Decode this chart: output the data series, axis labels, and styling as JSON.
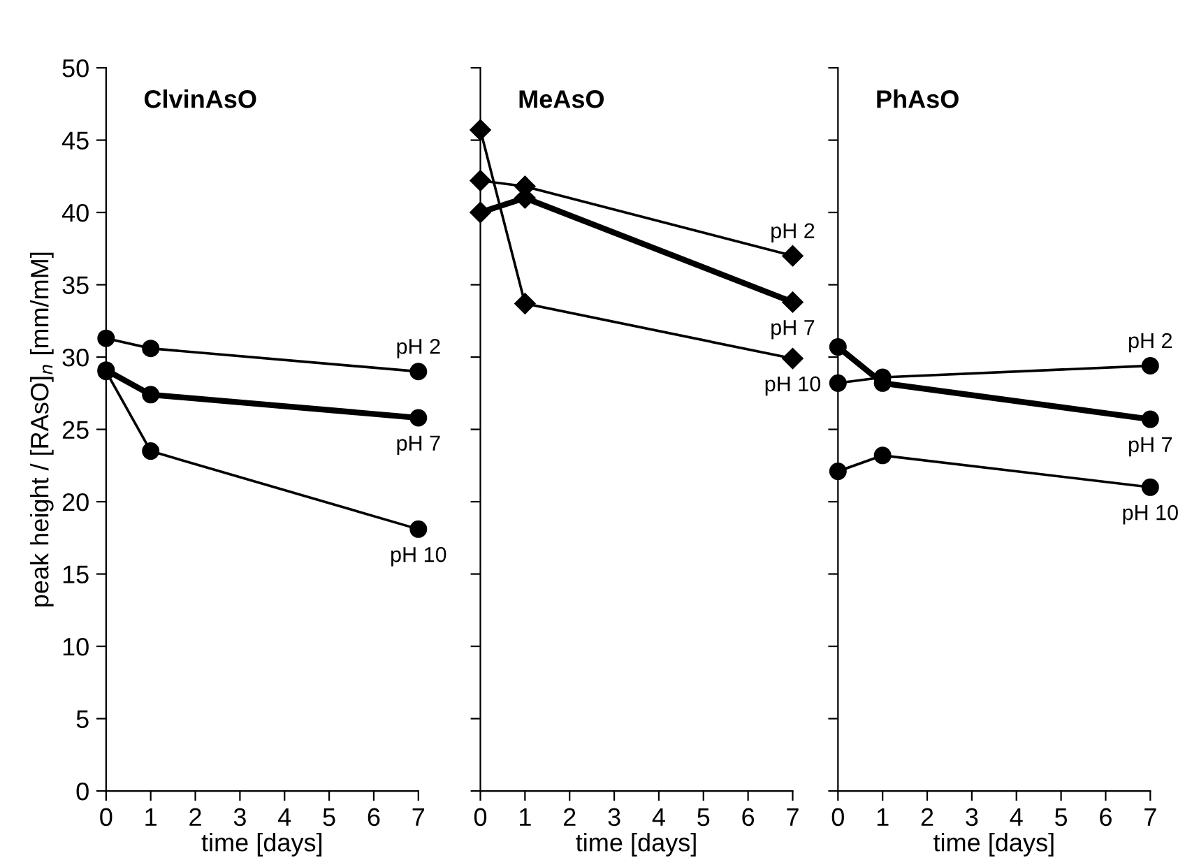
{
  "chart_data": [
    {
      "type": "line",
      "title": "ClvinAsO",
      "xlabel": "time [days]",
      "ylabel": "peak height / [RAsO]$_{n}$ [mm/mM]",
      "x": [
        0,
        1,
        7
      ],
      "xlim": [
        0,
        7
      ],
      "xticks": [
        0,
        1,
        2,
        3,
        4,
        5,
        6,
        7
      ],
      "ylim": [
        0,
        50
      ],
      "yticks": [
        0,
        5,
        10,
        15,
        20,
        25,
        30,
        35,
        40,
        45,
        50
      ],
      "marker": "circle",
      "grid": false,
      "legend": "right",
      "series": [
        {
          "name": "pH 2",
          "color": "#000000",
          "values": [
            31.3,
            30.6,
            29.0
          ]
        },
        {
          "name": "pH 7",
          "color": "#000000",
          "values": [
            29.1,
            27.4,
            25.8
          ]
        },
        {
          "name": "pH 10",
          "color": "#000000",
          "values": [
            29.0,
            23.5,
            18.1
          ]
        }
      ]
    },
    {
      "type": "line",
      "title": "MeAsO",
      "xlabel": "time [days]",
      "x": [
        0,
        1,
        7
      ],
      "xlim": [
        0,
        7
      ],
      "xticks": [
        0,
        1,
        2,
        3,
        4,
        5,
        6,
        7
      ],
      "ylim": [
        0,
        50
      ],
      "yticks": [
        0,
        5,
        10,
        15,
        20,
        25,
        30,
        35,
        40,
        45,
        50
      ],
      "tick_labels": "x",
      "marker": "diamond",
      "grid": false,
      "legend": "right",
      "series": [
        {
          "name": "pH 2",
          "color": "#000000",
          "values": [
            42.2,
            41.8,
            37.0
          ]
        },
        {
          "name": "pH 7",
          "color": "#000000",
          "values": [
            40.0,
            41.0,
            33.8
          ]
        },
        {
          "name": "pH 10",
          "color": "#000000",
          "values": [
            45.7,
            33.7,
            29.9
          ]
        }
      ]
    },
    {
      "type": "line",
      "title": "PhAsO",
      "xlabel": "time [days]",
      "x": [
        0,
        1,
        7
      ],
      "xlim": [
        0,
        7
      ],
      "xticks": [
        0,
        1,
        2,
        3,
        4,
        5,
        6,
        7
      ],
      "ylim": [
        0,
        50
      ],
      "yticks": [
        0,
        5,
        10,
        15,
        20,
        25,
        30,
        35,
        40,
        45,
        50
      ],
      "tick_labels": "x",
      "marker": "circle",
      "grid": false,
      "legend": "right",
      "series": [
        {
          "name": "pH 2",
          "color": "#000000",
          "values": [
            28.2,
            28.6,
            29.4
          ]
        },
        {
          "name": "pH 7",
          "color": "#000000",
          "values": [
            30.7,
            28.2,
            25.7
          ]
        },
        {
          "name": "pH 10",
          "color": "#000000",
          "values": [
            22.1,
            23.2,
            21.0
          ]
        }
      ]
    }
  ]
}
